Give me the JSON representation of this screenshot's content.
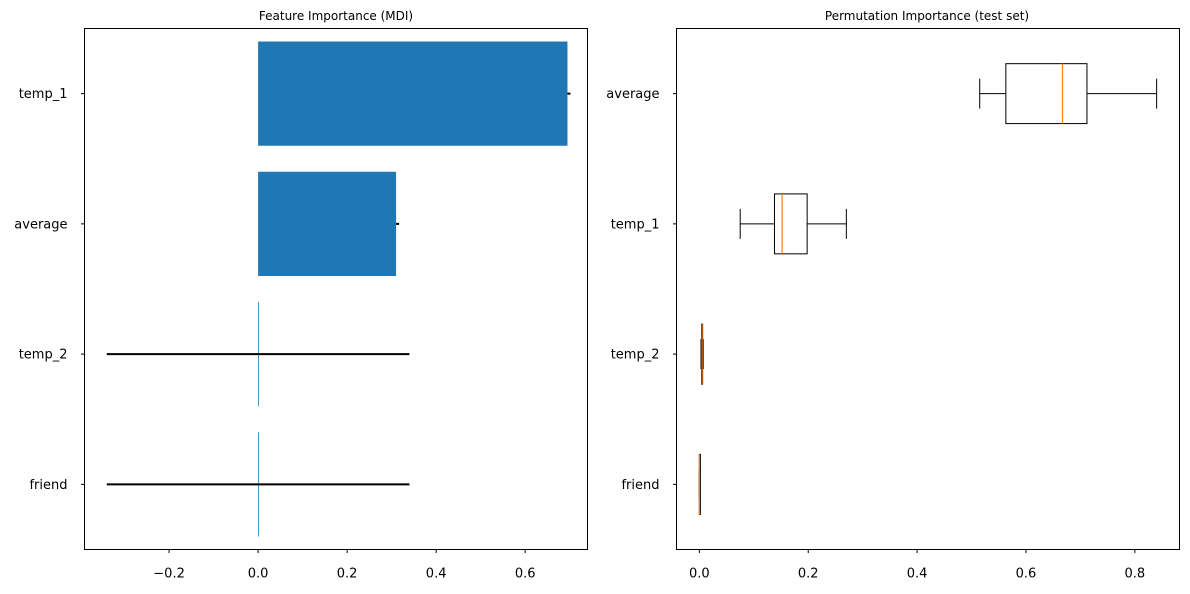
{
  "chart_data": [
    {
      "type": "bar",
      "orientation": "horizontal",
      "title": "Feature Importance (MDI)",
      "categories": [
        "temp_1",
        "average",
        "temp_2",
        "friend"
      ],
      "values": [
        0.695,
        0.31,
        0.0,
        0.0
      ],
      "error": [
        0.0,
        0.0,
        0.34,
        0.34
      ],
      "xlim": [
        -0.39,
        0.74
      ],
      "xticks": [
        -0.2,
        0.0,
        0.2,
        0.4,
        0.6
      ],
      "xtick_labels": [
        "−0.2",
        "0.0",
        "0.2",
        "0.4",
        "0.6"
      ],
      "bar_color": "#1f77b4",
      "error_color": "#000000",
      "grid": false
    },
    {
      "type": "box",
      "orientation": "horizontal",
      "title": "Permutation Importance (test set)",
      "categories": [
        "average",
        "temp_1",
        "temp_2",
        "friend"
      ],
      "boxes": [
        {
          "whisker_low": 0.515,
          "q1": 0.563,
          "median": 0.667,
          "q3": 0.712,
          "whisker_high": 0.84
        },
        {
          "whisker_low": 0.075,
          "q1": 0.138,
          "median": 0.152,
          "q3": 0.198,
          "whisker_high": 0.27
        },
        {
          "whisker_low": 0.003,
          "q1": 0.004,
          "median": 0.005,
          "q3": 0.006,
          "whisker_high": 0.007
        },
        {
          "whisker_low": 0.0,
          "q1": 0.0,
          "median": 0.0,
          "q3": 0.0,
          "whisker_high": 0.0
        }
      ],
      "xlim": [
        -0.042,
        0.882
      ],
      "xticks": [
        0.0,
        0.2,
        0.4,
        0.6,
        0.8
      ],
      "xtick_labels": [
        "0.0",
        "0.2",
        "0.4",
        "0.6",
        "0.8"
      ],
      "median_color": "#ff7f0e",
      "box_color": "#000000",
      "grid": false
    }
  ]
}
